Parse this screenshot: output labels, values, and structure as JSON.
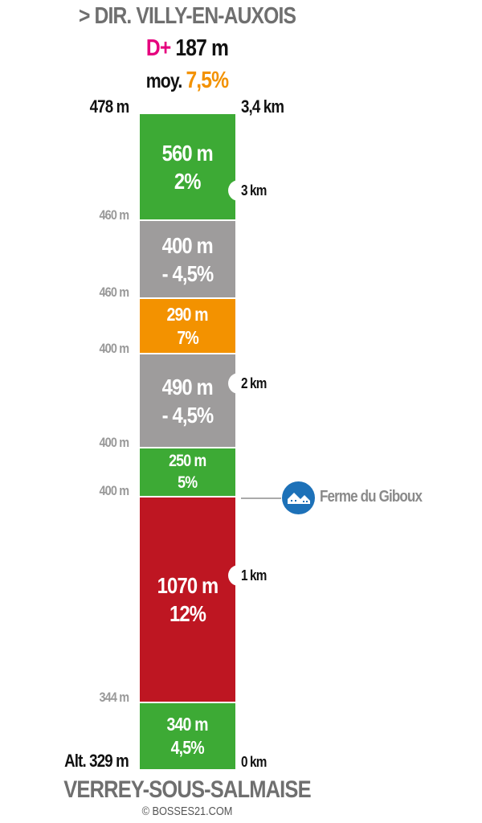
{
  "header": {
    "direction": "> DIR. VILLY-EN-AUXOIS",
    "dplus_label": "D+",
    "dplus_value": "187 m",
    "avg_label": "moy.",
    "avg_value": "7,5%"
  },
  "top": {
    "alt": "478 m",
    "km": "3,4 km"
  },
  "segments": [
    {
      "length": "560 m",
      "grade": "2%",
      "color": "#3daa35"
    },
    {
      "length": "400 m",
      "grade": "- 4,5%",
      "color": "#9e9c9c"
    },
    {
      "length": "290 m",
      "grade": "7%",
      "color": "#f39200"
    },
    {
      "length": "490 m",
      "grade": "- 4,5%",
      "color": "#9e9c9c"
    },
    {
      "length": "250 m",
      "grade": "5%",
      "color": "#3daa35"
    },
    {
      "length": "1070 m",
      "grade": "12%",
      "color": "#be1622"
    },
    {
      "length": "340 m",
      "grade": "4,5%",
      "color": "#3daa35"
    }
  ],
  "altitudes": [
    "460 m",
    "460 m",
    "400 m",
    "400 m",
    "400 m",
    "344 m"
  ],
  "km_markers": [
    "3 km",
    "2 km",
    "1 km",
    "0 km"
  ],
  "poi": {
    "label": "Ferme du Giboux",
    "icon": "houses-icon"
  },
  "bottom": {
    "alt": "Alt. 329 m",
    "start": "VERREY-SOUS-SALMAISE",
    "credit": "© BOSSES21.COM"
  }
}
